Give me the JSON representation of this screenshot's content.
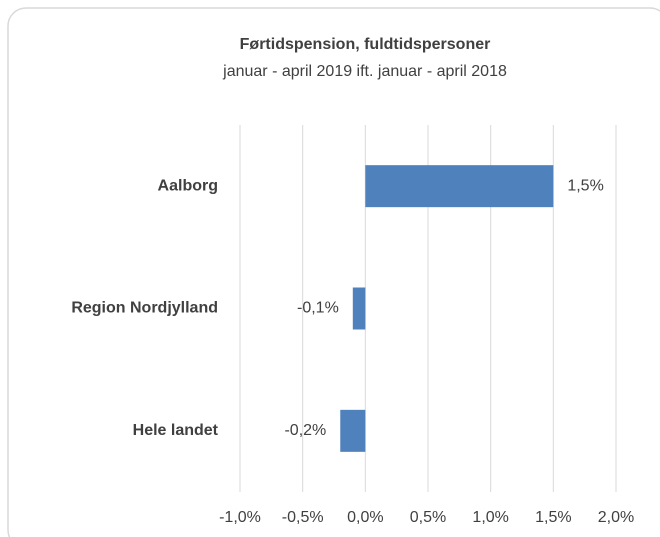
{
  "chart_data": {
    "type": "bar",
    "orientation": "horizontal",
    "title": "Førtidspension, fuldtidspersoner",
    "subtitle": "januar - april 2019 ift. januar - april 2018",
    "categories": [
      "Aalborg",
      "Region Nordjylland",
      "Hele landet"
    ],
    "values": [
      1.5,
      -0.1,
      -0.2
    ],
    "value_labels": [
      "1,5%",
      "-0,1%",
      "-0,2%"
    ],
    "color": "#4f81bd",
    "xlim": [
      -1.0,
      2.0
    ],
    "xticks": [
      {
        "value": -1.0,
        "label": "-1,0%"
      },
      {
        "value": -0.5,
        "label": "-0,5%"
      },
      {
        "value": 0,
        "label": "0,0%"
      },
      {
        "value": 0.5,
        "label": "0,5%"
      },
      {
        "value": 1.0,
        "label": "1,0%"
      },
      {
        "value": 1.5,
        "label": "1,5%"
      },
      {
        "value": 2.0,
        "label": "2,0%"
      }
    ],
    "grid": true
  }
}
